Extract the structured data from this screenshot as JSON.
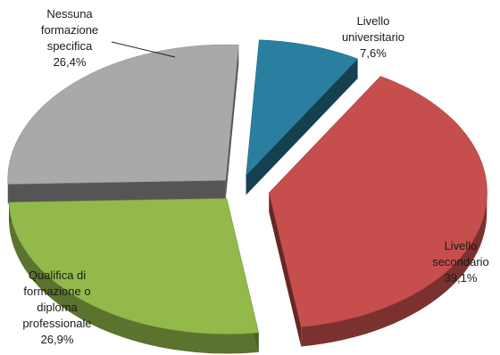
{
  "chart_data": {
    "type": "pie",
    "title": "",
    "exploded": true,
    "three_d": true,
    "slices": [
      {
        "label": "Livello universitario",
        "label_lines": [
          "Livello",
          "universitario"
        ],
        "value": 7.6,
        "value_label": "7,6%",
        "color": "#2a7fa0"
      },
      {
        "label": "Livello secondario",
        "label_lines": [
          "Livello",
          "secondario"
        ],
        "value": 39.1,
        "value_label": "39,1%",
        "color": "#c64f4d"
      },
      {
        "label": "Qualifica di formazione o diploma professionale",
        "label_lines": [
          "Qualifica di",
          "formazione o",
          "diploma",
          "professionale"
        ],
        "value": 26.9,
        "value_label": "26,9%",
        "color": "#93b94a"
      },
      {
        "label": "Nessuna formazione specifica",
        "label_lines": [
          "Nessuna",
          "formazione",
          "specifica"
        ],
        "value": 26.4,
        "value_label": "26,4%",
        "color": "#a9a9a9"
      }
    ]
  }
}
